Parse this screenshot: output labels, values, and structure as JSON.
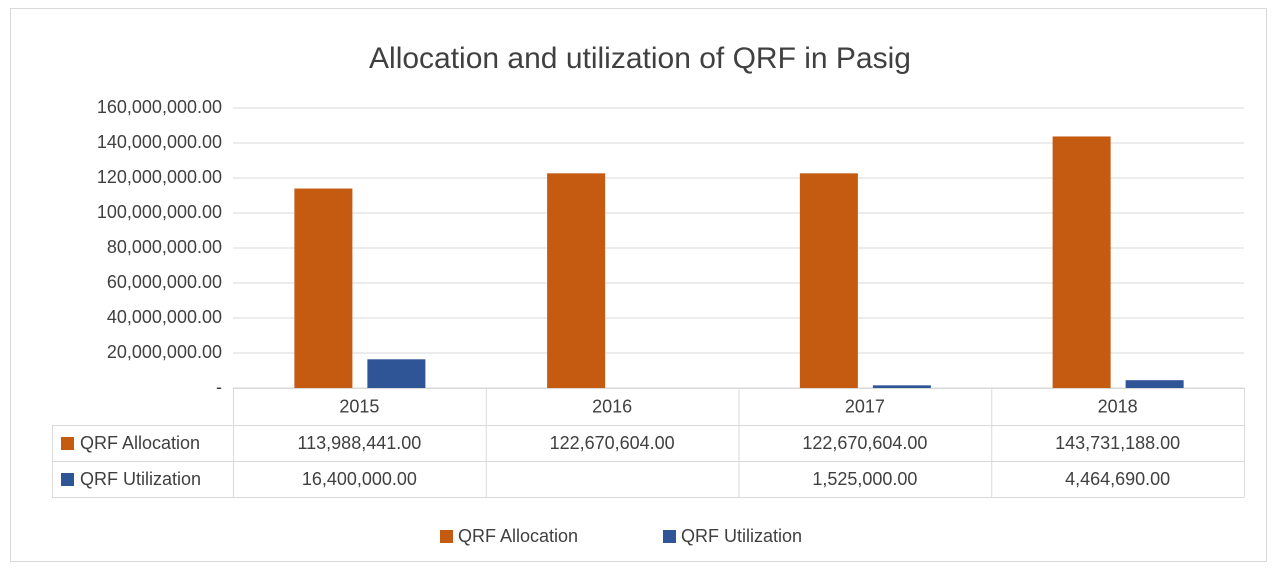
{
  "chart_data": {
    "type": "bar",
    "title": "Allocation and utilization of QRF in Pasig",
    "categories": [
      "2015",
      "2016",
      "2017",
      "2018"
    ],
    "series": [
      {
        "name": "QRF Allocation",
        "color": "#c55a11",
        "values": [
          113988441,
          122670604,
          122670604,
          143731188
        ],
        "value_labels": [
          "113,988,441.00",
          "122,670,604.00",
          "122,670,604.00",
          "143,731,188.00"
        ]
      },
      {
        "name": "QRF Utilization",
        "color": "#2f5597",
        "values": [
          16400000,
          null,
          1525000,
          4464690
        ],
        "value_labels": [
          "16,400,000.00",
          null,
          "1,525,000.00",
          "4,464,690.00"
        ]
      }
    ],
    "ylim": [
      0,
      160000000
    ],
    "yticks": [
      {
        "value": 0,
        "label": "-"
      },
      {
        "value": 20000000,
        "label": "20,000,000.00"
      },
      {
        "value": 40000000,
        "label": "40,000,000.00"
      },
      {
        "value": 60000000,
        "label": "60,000,000.00"
      },
      {
        "value": 80000000,
        "label": "80,000,000.00"
      },
      {
        "value": 100000000,
        "label": "100,000,000.00"
      },
      {
        "value": 120000000,
        "label": "120,000,000.00"
      },
      {
        "value": 140000000,
        "label": "140,000,000.00"
      },
      {
        "value": 160000000,
        "label": "160,000,000.00"
      }
    ],
    "grid": true,
    "legend": "bottom"
  }
}
